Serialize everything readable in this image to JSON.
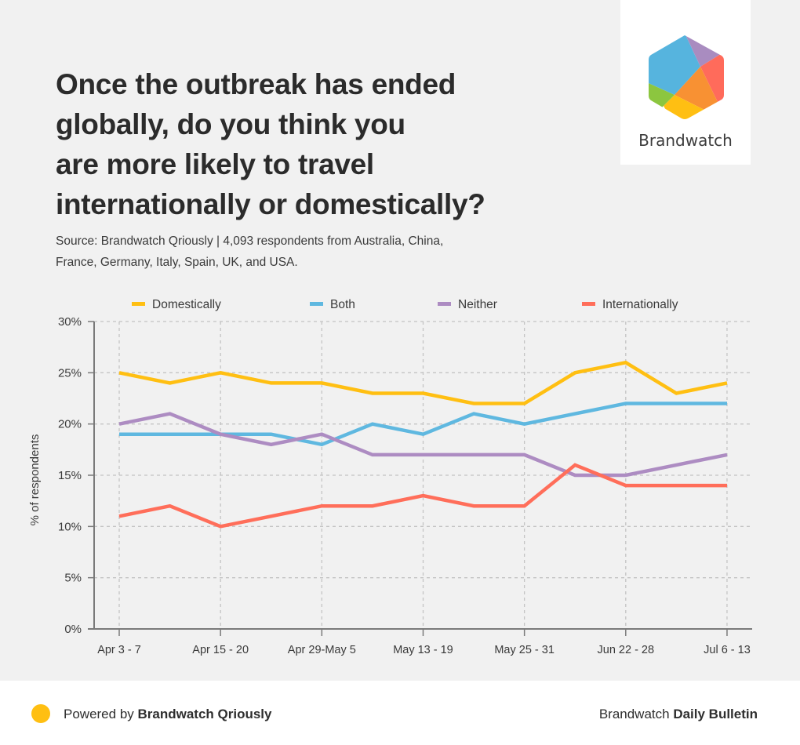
{
  "brand": {
    "logo_text": "Brandwatch",
    "logo_colors": {
      "blue": "#56b4de",
      "purple": "#a98cc0",
      "red": "#ff6b5b",
      "orange": "#f89133",
      "yellow": "#ffbf12",
      "green": "#8cc63f"
    }
  },
  "header": {
    "title_lines": [
      "Once the outbreak has ended",
      "globally, do you think you",
      "are more likely to travel",
      "internationally or domestically?"
    ],
    "subtitle_lines": [
      "Source: Brandwatch Qriously | 4,093 respondents from Australia, China,",
      "France, Germany, Italy, Spain, UK, and USA."
    ]
  },
  "chart_data": {
    "type": "line",
    "title": "Once the outbreak has ended globally, do you think you are more likely to travel internationally or domestically?",
    "xlabel": "",
    "ylabel": "% of respondents",
    "ylim": [
      0,
      30
    ],
    "yticks": [
      0,
      5,
      10,
      15,
      20,
      25,
      30
    ],
    "ytick_labels": [
      "0%",
      "5%",
      "10%",
      "15%",
      "20%",
      "25%",
      "30%"
    ],
    "x_count": 13,
    "xtick_indices": [
      0,
      2,
      4,
      6,
      8,
      10,
      12
    ],
    "xtick_labels": [
      "Apr 3 - 7",
      "Apr 15 - 20",
      "Apr 29-May 5",
      "May 13 - 19",
      "May 25 - 31",
      "Jun 22 - 28",
      "Jul 6 - 13"
    ],
    "grid": true,
    "legend_position": "top",
    "series": [
      {
        "name": "Domestically",
        "color": "#ffbf12",
        "values": [
          25,
          24,
          25,
          24,
          24,
          23,
          23,
          22,
          22,
          25,
          26,
          23,
          24
        ]
      },
      {
        "name": "Both",
        "color": "#5fb8e0",
        "values": [
          19,
          19,
          19,
          19,
          18,
          20,
          19,
          21,
          20,
          21,
          22,
          22,
          22
        ]
      },
      {
        "name": "Neither",
        "color": "#ad8cc2",
        "values": [
          20,
          21,
          19,
          18,
          19,
          17,
          17,
          17,
          17,
          15,
          15,
          16,
          17
        ]
      },
      {
        "name": "Internationally",
        "color": "#ff6e5a",
        "values": [
          11,
          12,
          10,
          11,
          12,
          12,
          13,
          12,
          12,
          16,
          14,
          14,
          14
        ]
      }
    ]
  },
  "footer": {
    "left_prefix": "Powered by ",
    "left_bold": "Brandwatch Qriously",
    "right_prefix": "Brandwatch ",
    "right_bold": "Daily Bulletin",
    "dot_color": "#ffbf12"
  }
}
